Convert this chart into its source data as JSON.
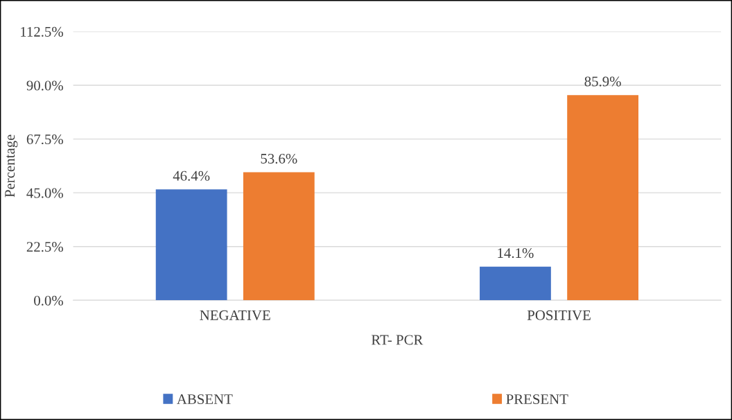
{
  "chart_data": {
    "type": "bar",
    "xlabel": "RT- PCR",
    "ylabel": "Percentage",
    "categories": [
      "NEGATIVE",
      "POSITIVE"
    ],
    "series": [
      {
        "name": "ABSENT",
        "color": "#4472c4",
        "values": [
          46.4,
          14.1
        ],
        "value_labels": [
          "46.4%",
          "14.1%"
        ]
      },
      {
        "name": "PRESENT",
        "color": "#ed7d31",
        "values": [
          53.6,
          85.9
        ],
        "value_labels": [
          "53.6%",
          "85.9%"
        ]
      }
    ],
    "ylim": [
      0,
      112.5
    ],
    "yticks": [
      {
        "value": 0,
        "label": "0.0%"
      },
      {
        "value": 22.5,
        "label": "22.5%"
      },
      {
        "value": 45,
        "label": "45.0%"
      },
      {
        "value": 67.5,
        "label": "67.5%"
      },
      {
        "value": 90,
        "label": "90.0%"
      },
      {
        "value": 112.5,
        "label": "112.5%"
      }
    ],
    "grid": "y",
    "legend": "bottom"
  }
}
